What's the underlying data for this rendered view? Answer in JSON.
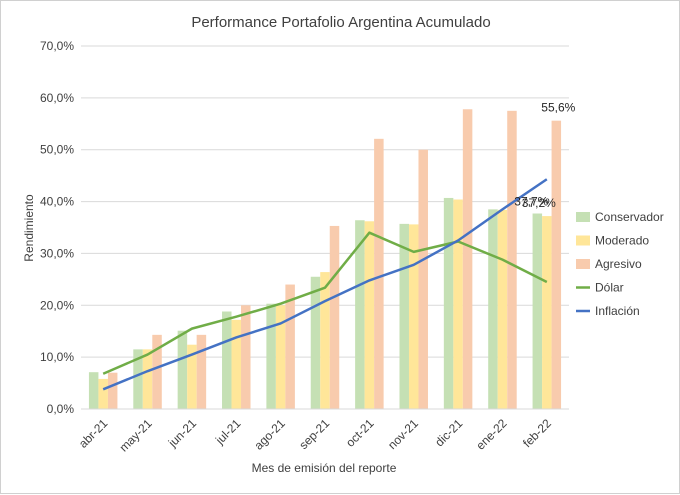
{
  "chart_data": {
    "type": "bar",
    "title": "Performance Portafolio Argentina Acumulado",
    "xlabel": "Mes de emisión del reporte",
    "ylabel": "Rendimiento",
    "ylim": [
      0,
      70
    ],
    "y_ticks": [
      "0,0%",
      "10,0%",
      "20,0%",
      "30,0%",
      "40,0%",
      "50,0%",
      "60,0%",
      "70,0%"
    ],
    "grid": true,
    "legend_position": "right",
    "categories": [
      "abr-21",
      "may-21",
      "jun-21",
      "jul-21",
      "ago-21",
      "sep-21",
      "oct-21",
      "nov-21",
      "dic-21",
      "ene-22",
      "feb-22"
    ],
    "series": [
      {
        "name": "Conservador",
        "type": "bar",
        "color": "#c5e0b4",
        "values": [
          7.1,
          11.5,
          15.1,
          18.8,
          20.3,
          25.5,
          36.4,
          35.7,
          40.7,
          38.5,
          37.7
        ]
      },
      {
        "name": "Moderado",
        "type": "bar",
        "color": "#ffe699",
        "values": [
          5.8,
          11.5,
          12.4,
          17.2,
          20.0,
          26.4,
          36.2,
          35.6,
          40.4,
          38.4,
          37.2
        ]
      },
      {
        "name": "Agresivo",
        "type": "bar",
        "color": "#f8cbad",
        "values": [
          7.0,
          14.3,
          14.3,
          20.0,
          24.0,
          35.3,
          52.1,
          50.0,
          57.8,
          57.5,
          55.6
        ]
      },
      {
        "name": "Dólar",
        "type": "line",
        "color": "#70ad47",
        "values": [
          6.8,
          10.5,
          15.5,
          17.8,
          20.3,
          23.4,
          34.0,
          30.3,
          32.3,
          28.8,
          24.5
        ]
      },
      {
        "name": "Inflación",
        "type": "line",
        "color": "#4472c4",
        "values": [
          3.8,
          7.3,
          10.5,
          13.8,
          16.5,
          20.8,
          24.8,
          27.8,
          32.5,
          38.5,
          44.3
        ]
      }
    ],
    "data_labels": [
      {
        "series": "Conservador",
        "category": "feb-22",
        "text": "37,7%"
      },
      {
        "series": "Moderado",
        "category": "feb-22",
        "text": "37,2%"
      },
      {
        "series": "Agresivo",
        "category": "feb-22",
        "text": "55,6%"
      }
    ]
  }
}
